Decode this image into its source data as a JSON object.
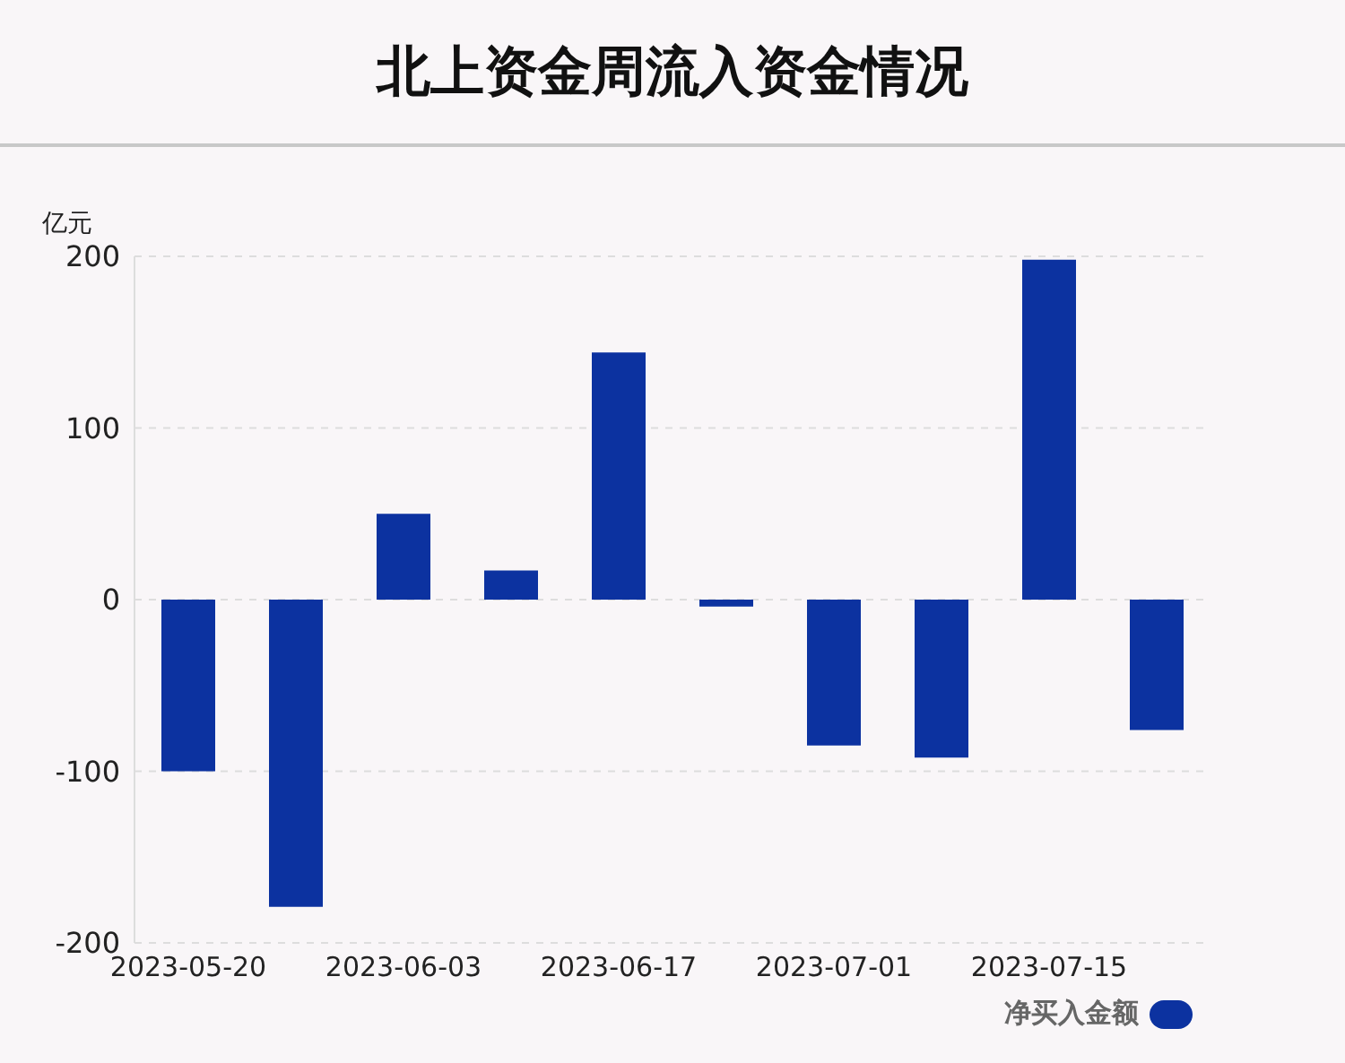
{
  "chart_data": {
    "type": "bar",
    "title": "北上资金周流入资金情况",
    "ylabel": "亿元",
    "categories": [
      "2023-05-20",
      null,
      "2023-06-03",
      null,
      "2023-06-17",
      null,
      "2023-07-01",
      null,
      "2023-07-15",
      null
    ],
    "series": [
      {
        "name": "净买入金额",
        "color": "#0c32a0",
        "values": [
          -100,
          -179,
          50,
          17,
          144,
          -4,
          -85,
          -92,
          198,
          -76
        ]
      }
    ],
    "ylim": [
      -200,
      200
    ],
    "yticks": [
      -200,
      -100,
      0,
      100,
      200
    ],
    "grid": "y",
    "legend": "bottom right"
  }
}
